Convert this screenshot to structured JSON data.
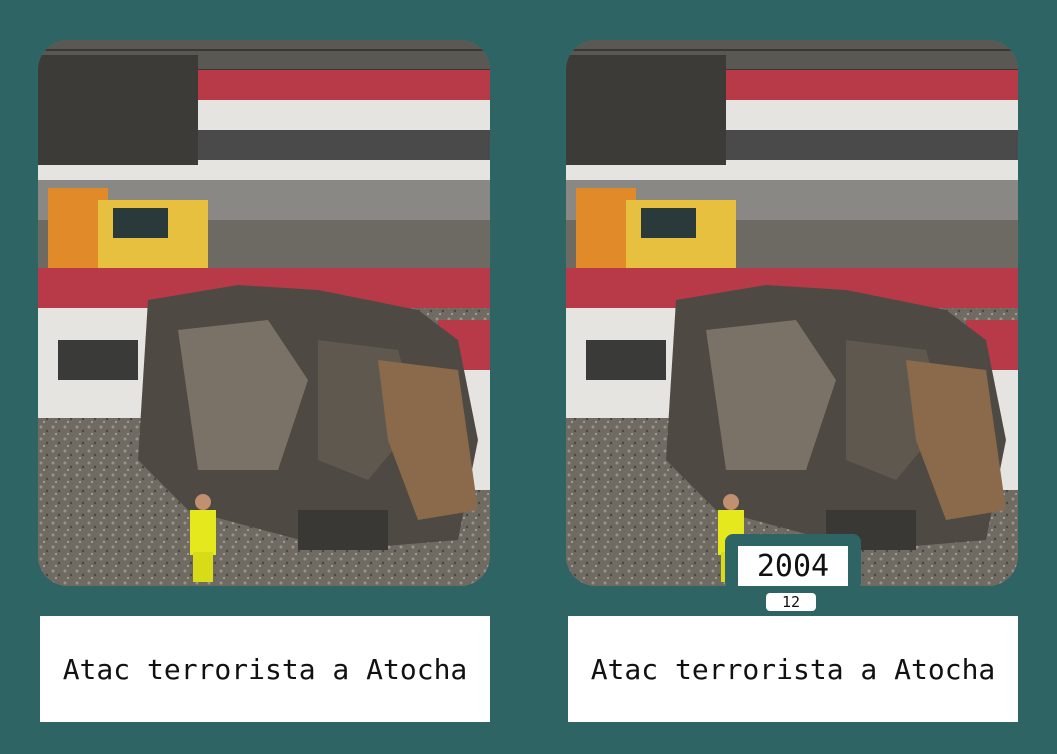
{
  "cards": [
    {
      "caption": "Atac terrorista a Atocha",
      "image": "train-bombing-photo"
    },
    {
      "caption": "Atac terrorista a Atocha",
      "image": "train-bombing-photo",
      "year": "2004",
      "number": "12"
    }
  ],
  "colors": {
    "background": "#2e6464",
    "caption_bg": "#ffffff",
    "train_red": "#b83a48",
    "truck_orange": "#e08a2a",
    "vest_yellow": "#e4e81c"
  }
}
